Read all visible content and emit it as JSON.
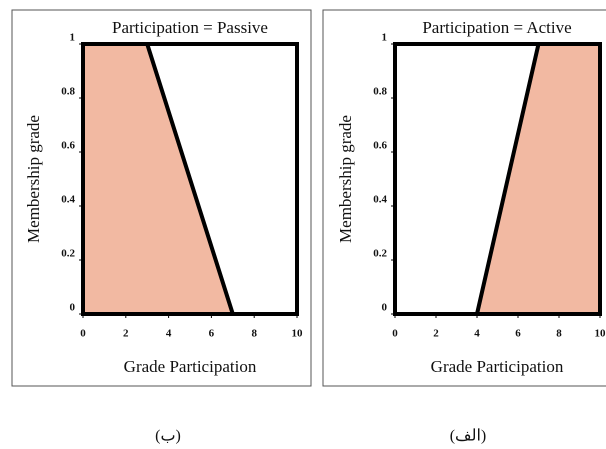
{
  "chart_data": [
    {
      "type": "area",
      "title": "Participation = Passive",
      "xlabel": "Grade Participation",
      "ylabel": "Membership grade",
      "caption": "(ب)",
      "x": [
        0,
        3,
        7
      ],
      "values": [
        1,
        1,
        0
      ],
      "color": "#f2b9a2",
      "xlim": [
        0,
        10
      ],
      "ylim": [
        0,
        1
      ],
      "xticks": [
        0,
        2,
        4,
        6,
        8,
        10
      ],
      "yticks": [
        0,
        0.2,
        0.4,
        0.6,
        0.8,
        1
      ]
    },
    {
      "type": "area",
      "title": "Participation = Active",
      "xlabel": "Grade Participation",
      "ylabel": "Membership grade",
      "caption": "(الف)",
      "x": [
        4,
        7,
        10
      ],
      "values": [
        0,
        1,
        1
      ],
      "color": "#f2b9a2",
      "xlim": [
        0,
        10
      ],
      "ylim": [
        0,
        1
      ],
      "xticks": [
        0,
        2,
        4,
        6,
        8,
        10
      ],
      "yticks": [
        0,
        0.2,
        0.4,
        0.6,
        0.8,
        1
      ]
    }
  ]
}
